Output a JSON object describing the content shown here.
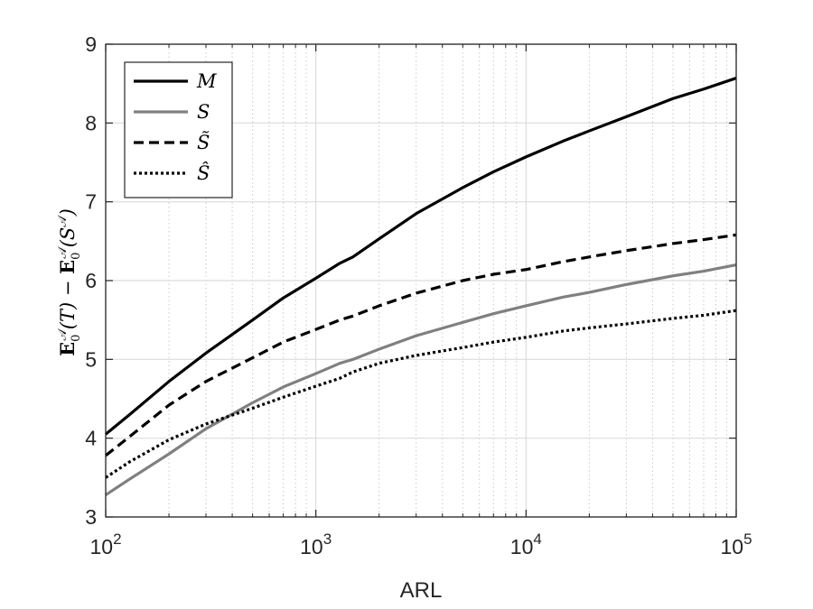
{
  "chart_data": {
    "type": "line",
    "xscale": "log",
    "xlim": [
      100,
      100000
    ],
    "ylim": [
      3,
      9
    ],
    "xlabel": "ARL",
    "ylabel_parts": [
      "E",
      "0",
      "𝒜",
      "(T) − ",
      "E",
      "0",
      "𝒜",
      "(S",
      "𝒜",
      ")"
    ],
    "x_ticks": [
      {
        "base": "10",
        "exp": "2"
      },
      {
        "base": "10",
        "exp": "3"
      },
      {
        "base": "10",
        "exp": "4"
      },
      {
        "base": "10",
        "exp": "5"
      }
    ],
    "y_ticks": [
      "3",
      "4",
      "5",
      "6",
      "7",
      "8",
      "9"
    ],
    "grid": true,
    "minor_grid_x": true,
    "legend_position": "top-left",
    "x": [
      100,
      130,
      200,
      300,
      500,
      700,
      1000,
      1300,
      1500,
      2000,
      3000,
      5000,
      7000,
      10000,
      15000,
      20000,
      30000,
      50000,
      70000,
      100000
    ],
    "series": [
      {
        "name": "M",
        "color": "#000000",
        "dash": "solid",
        "values": [
          4.05,
          4.3,
          4.72,
          5.08,
          5.5,
          5.78,
          6.03,
          6.22,
          6.3,
          6.53,
          6.85,
          7.18,
          7.38,
          7.57,
          7.77,
          7.9,
          8.08,
          8.31,
          8.43,
          8.57
        ]
      },
      {
        "name": "S",
        "color": "#808080",
        "dash": "solid",
        "values": [
          3.28,
          3.48,
          3.8,
          4.12,
          4.45,
          4.65,
          4.82,
          4.95,
          5.0,
          5.13,
          5.3,
          5.47,
          5.58,
          5.68,
          5.79,
          5.85,
          5.95,
          6.06,
          6.12,
          6.2
        ]
      },
      {
        "name": "S̃",
        "color": "#000000",
        "dash": "dashed",
        "values": [
          3.78,
          4.02,
          4.42,
          4.72,
          5.02,
          5.22,
          5.38,
          5.5,
          5.55,
          5.68,
          5.84,
          6.0,
          6.08,
          6.14,
          6.24,
          6.3,
          6.38,
          6.47,
          6.52,
          6.58
        ]
      },
      {
        "name": "Ŝ",
        "color": "#000000",
        "dash": "dotted",
        "values": [
          3.5,
          3.7,
          3.98,
          4.18,
          4.38,
          4.52,
          4.66,
          4.76,
          4.84,
          4.95,
          5.05,
          5.15,
          5.22,
          5.28,
          5.36,
          5.4,
          5.45,
          5.52,
          5.56,
          5.62
        ]
      }
    ]
  }
}
